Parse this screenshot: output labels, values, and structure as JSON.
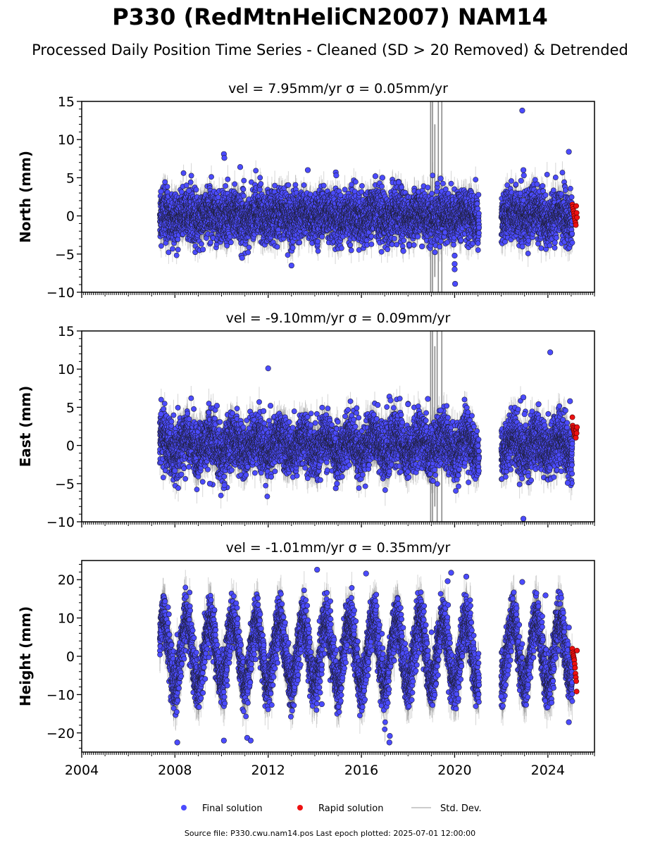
{
  "title": "P330 (RedMtnHeliCN2007) NAM14",
  "subtitle": "Processed Daily Position Time Series - Cleaned (SD > 20 Removed) & Detrended",
  "source_note": "Source file: P330.cwu.nam14.pos  Last epoch plotted: 2025-07-01 12:00:00",
  "colors": {
    "final": "#4b4bff",
    "rapid": "#ee1111",
    "std": "#777777"
  },
  "chart_data": [
    {
      "type": "scatter",
      "panel": "north",
      "title": "vel = 7.95mm/yr   σ = 0.05mm/yr",
      "ylabel": "North (mm)",
      "xlim": [
        2004.0,
        2026.0
      ],
      "ylim": [
        -10,
        15
      ],
      "yticks": [
        -10,
        -5,
        0,
        5,
        10,
        15
      ],
      "xticks": [
        2004,
        2008,
        2012,
        2016,
        2020,
        2024
      ],
      "show_xtick_labels": false,
      "data_start": 2007.35,
      "gap": [
        2021.05,
        2022.0
      ],
      "final_end": 2025.05,
      "rapid_range": [
        2025.05,
        2025.25
      ],
      "spread": 1.6,
      "seasonal_amp": 0.5,
      "std_band": 1.5,
      "band_variation": 0.3,
      "base": 0.0,
      "rapid_values": [
        1.5,
        1.2,
        0.9,
        0.6,
        0.3,
        0.0,
        -0.3,
        -0.6,
        -0.9,
        -1.2,
        1.3,
        0.4,
        -0.2
      ],
      "outliers": [
        [
          2007.4,
          3.2
        ],
        [
          2008.6,
          3.3
        ],
        [
          2009.2,
          -4.4
        ],
        [
          2010.1,
          8.1
        ],
        [
          2010.12,
          7.6
        ],
        [
          2010.8,
          6.4
        ],
        [
          2010.85,
          -5.2
        ],
        [
          2010.88,
          -5.5
        ],
        [
          2013.0,
          -6.5
        ],
        [
          2013.7,
          6.0
        ],
        [
          2014.9,
          5.7
        ],
        [
          2014.92,
          5.3
        ],
        [
          2016.6,
          5.2
        ],
        [
          2016.9,
          5.0
        ],
        [
          2017.6,
          4.4
        ],
        [
          2017.8,
          -4.6
        ],
        [
          2018.6,
          -4.0
        ],
        [
          2019.4,
          4.9
        ],
        [
          2020.0,
          -5.2
        ],
        [
          2020.0,
          -6.3
        ],
        [
          2020.0,
          -7.0
        ],
        [
          2020.02,
          -8.9
        ],
        [
          2022.85,
          4.6
        ],
        [
          2022.95,
          6.0
        ],
        [
          2022.97,
          5.3
        ],
        [
          2022.9,
          13.8
        ],
        [
          2024.9,
          8.4
        ],
        [
          2024.3,
          -3.5
        ]
      ],
      "spikes": [
        [
          2018.97,
          15,
          -10
        ],
        [
          2019.05,
          15,
          -10
        ],
        [
          2019.3,
          15,
          -10
        ],
        [
          2019.45,
          15,
          -10
        ],
        [
          2019.15,
          12,
          -8
        ]
      ]
    },
    {
      "type": "scatter",
      "panel": "east",
      "title": "vel = -9.10mm/yr   σ = 0.09mm/yr",
      "ylabel": "East (mm)",
      "xlim": [
        2004.0,
        2026.0
      ],
      "ylim": [
        -10,
        15
      ],
      "yticks": [
        -10,
        -5,
        0,
        5,
        10,
        15
      ],
      "xticks": [
        2004,
        2008,
        2012,
        2016,
        2020,
        2024
      ],
      "show_xtick_labels": false,
      "data_start": 2007.35,
      "gap": [
        2021.05,
        2022.0
      ],
      "final_end": 2025.05,
      "rapid_range": [
        2025.05,
        2025.25
      ],
      "spread": 1.7,
      "seasonal_amp": 1.1,
      "std_band": 1.6,
      "band_variation": 0.3,
      "base": 0.0,
      "rapid_values": [
        3.7,
        2.6,
        2.3,
        2.1,
        1.9,
        1.7,
        1.5,
        1.3,
        1.1,
        1.0,
        2.0,
        1.6,
        2.4
      ],
      "outliers": [
        [
          2007.4,
          4.1
        ],
        [
          2008.0,
          -3.3
        ],
        [
          2009.5,
          -5.0
        ],
        [
          2009.8,
          5.2
        ],
        [
          2010.1,
          -5.6
        ],
        [
          2010.12,
          -5.2
        ],
        [
          2011.8,
          4.5
        ],
        [
          2012.0,
          10.1
        ],
        [
          2012.1,
          5.2
        ],
        [
          2014.9,
          -5.6
        ],
        [
          2014.95,
          -5.0
        ],
        [
          2016.7,
          5.3
        ],
        [
          2017.2,
          6.4
        ],
        [
          2017.25,
          5.9
        ],
        [
          2018.0,
          5.4
        ],
        [
          2018.85,
          6.1
        ],
        [
          2019.4,
          4.6
        ],
        [
          2022.95,
          6.3
        ],
        [
          2023.0,
          4.1
        ],
        [
          2022.95,
          -9.6
        ],
        [
          2023.6,
          5.4
        ],
        [
          2024.1,
          12.2
        ],
        [
          2024.95,
          5.8
        ],
        [
          2024.85,
          -4.9
        ]
      ],
      "spikes": [
        [
          2018.97,
          15,
          -10
        ],
        [
          2019.05,
          15,
          -10
        ],
        [
          2019.25,
          15,
          -10
        ],
        [
          2019.45,
          15,
          -10
        ],
        [
          2019.15,
          13,
          -8
        ]
      ]
    },
    {
      "type": "scatter",
      "panel": "height",
      "title": "vel = -1.01mm/yr   σ = 0.35mm/yr",
      "ylabel": "Height (mm)",
      "xlim": [
        2004.0,
        2026.0
      ],
      "ylim": [
        -25,
        25
      ],
      "yticks": [
        -20,
        -10,
        0,
        10,
        20
      ],
      "xticks": [
        2004,
        2008,
        2012,
        2016,
        2020,
        2024
      ],
      "show_xtick_labels": true,
      "data_start": 2007.35,
      "gap": [
        2021.05,
        2022.0
      ],
      "final_end": 2025.05,
      "rapid_range": [
        2025.05,
        2025.25
      ],
      "spread": 3.3,
      "seasonal_amp": 8.5,
      "std_band": 4.2,
      "band_variation": 0.3,
      "base": 1.0,
      "rapid_values": [
        2.0,
        1.0,
        0.5,
        0.0,
        -0.5,
        -1.0,
        -2.0,
        -3.0,
        -4.5,
        -5.5,
        -6.5,
        -9.2,
        1.5
      ],
      "outliers": [
        [
          2008.1,
          -22.5
        ],
        [
          2010.1,
          -22.0
        ],
        [
          2011.1,
          -21.3
        ],
        [
          2011.25,
          -22.0
        ],
        [
          2014.1,
          22.6
        ],
        [
          2014.3,
          -12.5
        ],
        [
          2016.2,
          21.6
        ],
        [
          2017.2,
          -22.5
        ],
        [
          2017.22,
          -20.8
        ],
        [
          2019.7,
          19.6
        ],
        [
          2019.85,
          21.8
        ],
        [
          2020.5,
          20.8
        ],
        [
          2022.0,
          -10.5
        ],
        [
          2022.9,
          19.4
        ],
        [
          2023.9,
          15.9
        ],
        [
          2024.9,
          7.5
        ],
        [
          2024.9,
          -17.2
        ]
      ],
      "spikes": []
    }
  ],
  "legend": [
    {
      "label": "Final solution",
      "marker": "final"
    },
    {
      "label": "Rapid solution",
      "marker": "rapid"
    },
    {
      "label": "Std. Dev.",
      "marker": "std"
    }
  ]
}
